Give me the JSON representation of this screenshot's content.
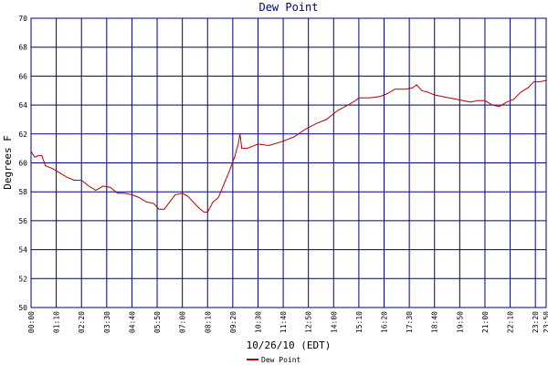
{
  "chart_data": {
    "type": "line",
    "title": "Dew Point",
    "x_label": "10/26/10 (EDT)",
    "y_label": "Degrees F",
    "xlim": [
      0,
      1430
    ],
    "ylim": [
      50,
      70
    ],
    "xticks": [
      {
        "value": 0,
        "label": "00:00"
      },
      {
        "value": 70,
        "label": "01:10"
      },
      {
        "value": 140,
        "label": "02:20"
      },
      {
        "value": 210,
        "label": "03:30"
      },
      {
        "value": 280,
        "label": "04:40"
      },
      {
        "value": 350,
        "label": "05:50"
      },
      {
        "value": 420,
        "label": "07:00"
      },
      {
        "value": 490,
        "label": "08:10"
      },
      {
        "value": 560,
        "label": "09:20"
      },
      {
        "value": 630,
        "label": "10:30"
      },
      {
        "value": 700,
        "label": "11:40"
      },
      {
        "value": 770,
        "label": "12:50"
      },
      {
        "value": 840,
        "label": "14:00"
      },
      {
        "value": 910,
        "label": "15:10"
      },
      {
        "value": 980,
        "label": "16:20"
      },
      {
        "value": 1050,
        "label": "17:30"
      },
      {
        "value": 1120,
        "label": "18:40"
      },
      {
        "value": 1190,
        "label": "19:50"
      },
      {
        "value": 1260,
        "label": "21:00"
      },
      {
        "value": 1330,
        "label": "22:10"
      },
      {
        "value": 1400,
        "label": "23:20"
      },
      {
        "value": 1430,
        "label": "23:50"
      }
    ],
    "yticks": [
      50,
      52,
      54,
      56,
      58,
      60,
      62,
      64,
      66,
      68,
      70
    ],
    "grid": true,
    "legend": "bottom",
    "x": [
      0,
      10,
      20,
      30,
      40,
      60,
      80,
      100,
      120,
      140,
      160,
      180,
      200,
      220,
      240,
      260,
      280,
      300,
      320,
      340,
      355,
      370,
      385,
      400,
      420,
      435,
      450,
      465,
      480,
      490,
      505,
      520,
      535,
      550,
      565,
      575,
      580,
      585,
      600,
      630,
      660,
      700,
      730,
      760,
      790,
      820,
      850,
      880,
      900,
      910,
      940,
      970,
      990,
      1010,
      1040,
      1060,
      1070,
      1085,
      1100,
      1120,
      1140,
      1160,
      1180,
      1200,
      1220,
      1240,
      1260,
      1280,
      1300,
      1320,
      1340,
      1360,
      1380,
      1395,
      1410,
      1430
    ],
    "series": [
      {
        "name": "Dew Point",
        "color": "#b00000",
        "values": [
          60.8,
          60.4,
          60.5,
          60.5,
          59.8,
          59.6,
          59.3,
          59.0,
          58.8,
          58.8,
          58.4,
          58.1,
          58.4,
          58.3,
          57.9,
          57.9,
          57.8,
          57.6,
          57.3,
          57.2,
          56.8,
          56.8,
          57.3,
          57.8,
          57.9,
          57.7,
          57.3,
          56.9,
          56.6,
          56.6,
          57.3,
          57.6,
          58.5,
          59.4,
          60.4,
          61.3,
          62.0,
          61.0,
          61.0,
          61.3,
          61.2,
          61.5,
          61.8,
          62.3,
          62.7,
          63.0,
          63.6,
          64.0,
          64.3,
          64.5,
          64.5,
          64.6,
          64.8,
          65.1,
          65.1,
          65.2,
          65.4,
          65.0,
          64.9,
          64.7,
          64.6,
          64.5,
          64.4,
          64.3,
          64.2,
          64.3,
          64.3,
          64.0,
          63.9,
          64.2,
          64.4,
          64.9,
          65.2,
          65.6,
          65.6,
          65.7
        ]
      }
    ]
  }
}
